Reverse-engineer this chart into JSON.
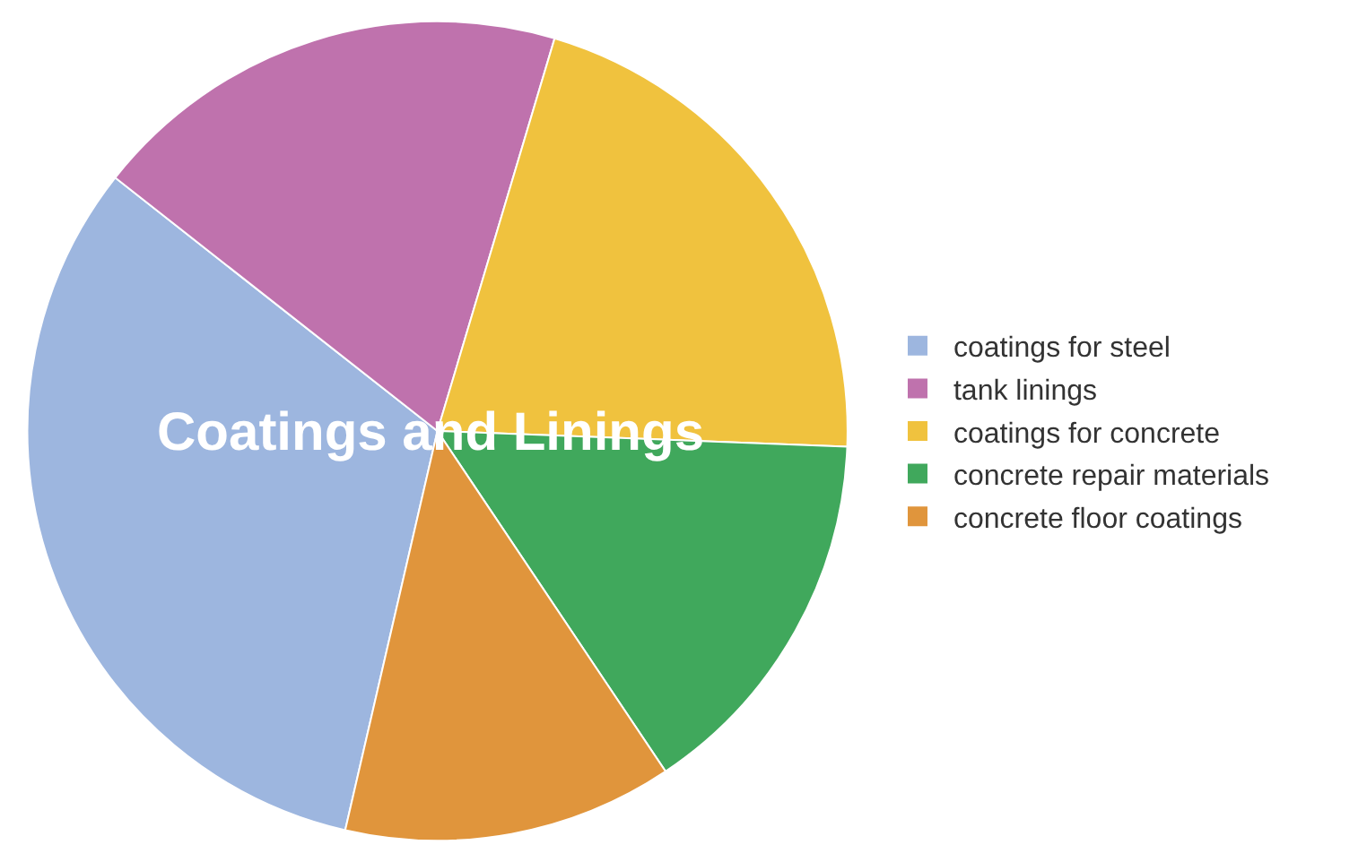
{
  "chart_data": {
    "type": "pie",
    "title": "Coatings and Linings",
    "categories": [
      "coatings for steel",
      "tank linings",
      "coatings for concrete",
      "concrete repair materials",
      "concrete floor coatings"
    ],
    "values": [
      32,
      19,
      21,
      15,
      13
    ],
    "colors": [
      "#9db6df",
      "#bf72ad",
      "#f0c23e",
      "#40a85c",
      "#e0953c"
    ],
    "legend": "right"
  }
}
